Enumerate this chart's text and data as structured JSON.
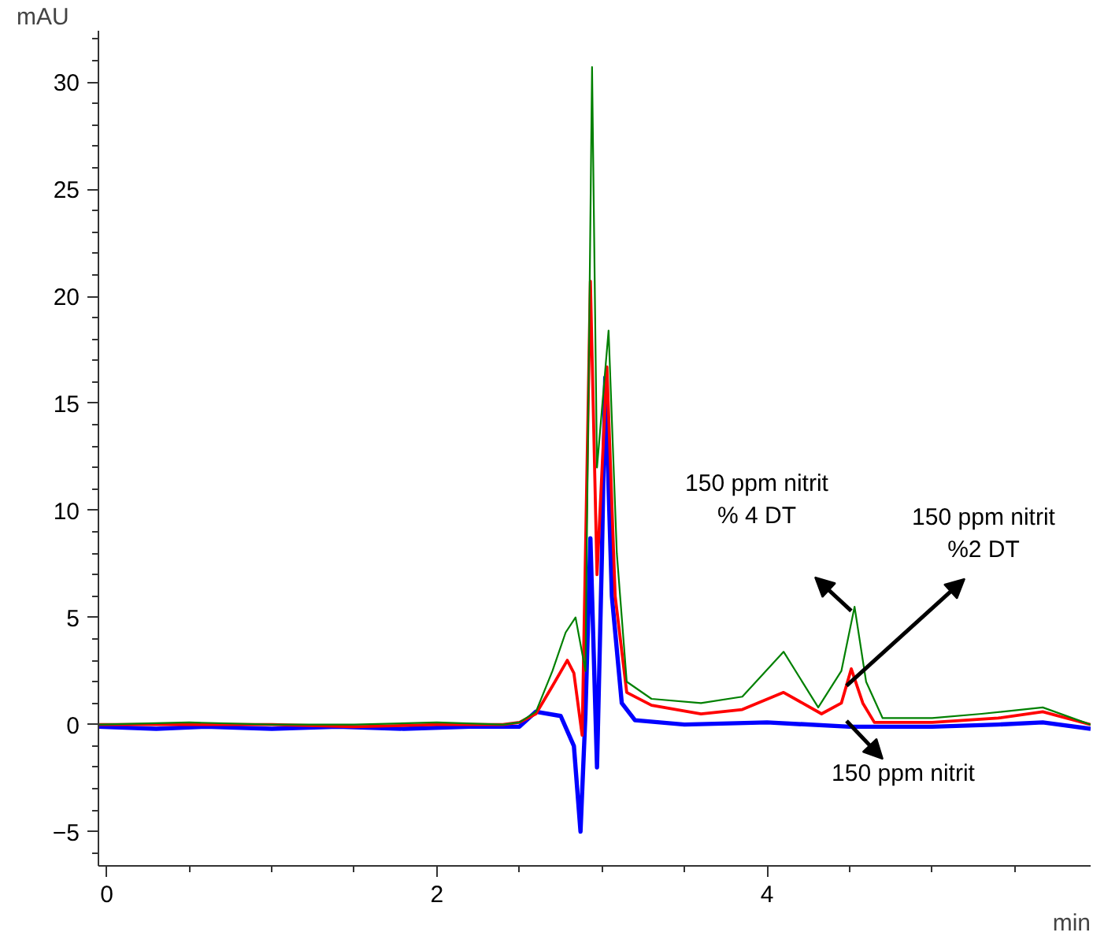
{
  "chart_data": {
    "type": "line",
    "xlabel": "min",
    "ylabel": "mAU",
    "xlim": [
      -0.05,
      5.96
    ],
    "ylim": [
      -6.6,
      32.4
    ],
    "xticks": [
      0,
      2,
      4
    ],
    "yticks": [
      -5,
      0,
      5,
      10,
      15,
      20,
      25,
      30
    ],
    "grid": false,
    "marker": "none",
    "line_style": "solid",
    "series": [
      {
        "color": "#0000ff",
        "x": [
          -0.05,
          0.3,
          0.6,
          1.0,
          1.4,
          1.8,
          2.2,
          2.5,
          2.6,
          2.75,
          2.83,
          2.87,
          2.9,
          2.93,
          2.97,
          3.0,
          3.02,
          3.06,
          3.12,
          3.2,
          3.5,
          4.0,
          4.5,
          5.0,
          5.4,
          5.67,
          5.96
        ],
        "values": [
          -0.1,
          -0.2,
          -0.1,
          -0.2,
          -0.1,
          -0.2,
          -0.1,
          -0.1,
          0.6,
          0.4,
          -1.0,
          -5.0,
          0.5,
          8.7,
          -2.0,
          8.0,
          16.2,
          6.0,
          1.0,
          0.2,
          0.0,
          0.1,
          -0.1,
          -0.1,
          0.0,
          0.1,
          -0.2
        ]
      },
      {
        "color": "#ff0000",
        "x": [
          -0.05,
          0.5,
          1.0,
          1.5,
          2.0,
          2.4,
          2.5,
          2.6,
          2.7,
          2.79,
          2.83,
          2.88,
          2.93,
          2.97,
          3.03,
          3.08,
          3.15,
          3.3,
          3.6,
          3.85,
          4.1,
          4.33,
          4.45,
          4.51,
          4.58,
          4.65,
          5.0,
          5.4,
          5.67,
          5.96
        ],
        "values": [
          0.0,
          0.0,
          0.0,
          -0.1,
          0.0,
          0.0,
          0.1,
          0.5,
          1.8,
          3.0,
          2.4,
          -0.5,
          20.7,
          7.0,
          16.7,
          6.0,
          1.5,
          0.9,
          0.5,
          0.7,
          1.5,
          0.5,
          1.0,
          2.6,
          1.0,
          0.1,
          0.1,
          0.3,
          0.6,
          0.0
        ]
      },
      {
        "color": "#008000",
        "x": [
          -0.05,
          0.5,
          1.0,
          1.5,
          2.0,
          2.4,
          2.5,
          2.6,
          2.7,
          2.78,
          2.84,
          2.9,
          2.94,
          2.97,
          3.04,
          3.09,
          3.15,
          3.3,
          3.6,
          3.85,
          4.1,
          4.31,
          4.45,
          4.53,
          4.6,
          4.7,
          5.0,
          5.3,
          5.67,
          5.96
        ],
        "values": [
          0.0,
          0.1,
          0.0,
          0.0,
          0.1,
          0.0,
          0.1,
          0.6,
          2.5,
          4.3,
          5.0,
          2.5,
          30.7,
          12.0,
          18.4,
          8.0,
          2.0,
          1.2,
          1.0,
          1.3,
          3.4,
          0.8,
          2.5,
          5.5,
          2.0,
          0.3,
          0.3,
          0.5,
          0.8,
          0.0
        ]
      }
    ],
    "annotations": [
      "150 ppm nitrit\n% 4 DT",
      "150 ppm nitrit\n%2 DT",
      "150 ppm nitrit"
    ]
  }
}
